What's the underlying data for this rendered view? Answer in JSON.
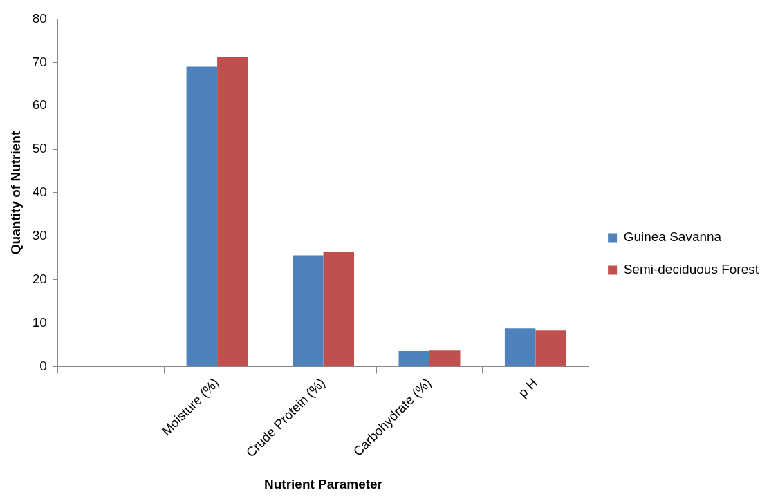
{
  "chart_data": {
    "type": "bar",
    "xlabel": "Nutrient Parameter",
    "ylabel": "Quantity of Nutrient",
    "categories": [
      null,
      "Moisture (%)",
      "Crude Protein (%)",
      "Carbohydrate (%)",
      "p H"
    ],
    "series": [
      {
        "name": "Guinea Savanna",
        "color": "#4f81bd",
        "values": [
          null,
          69.0,
          25.6,
          3.6,
          8.8
        ]
      },
      {
        "name": "Semi-deciduous Forest",
        "color": "#c0504d",
        "values": [
          null,
          71.2,
          26.4,
          3.7,
          8.3
        ]
      }
    ],
    "ylim": [
      0,
      80
    ],
    "yticks": [
      0,
      10,
      20,
      30,
      40,
      50,
      60,
      70,
      80
    ],
    "grid": false,
    "legend": "right"
  }
}
